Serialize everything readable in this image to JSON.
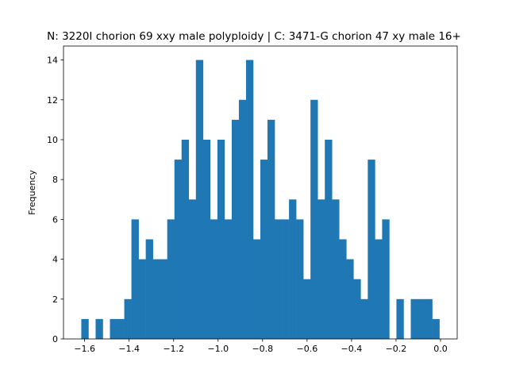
{
  "chart_data": {
    "type": "bar",
    "title": "N: 3220I chorion 69 xxy male polyploidy | C: 3471-G chorion 47 xy male 16+",
    "xlabel": "",
    "ylabel": "Frequency",
    "xlim": [
      -1.695,
      0.075
    ],
    "ylim": [
      0,
      14.7
    ],
    "xticks": [
      -1.6,
      -1.4,
      -1.2,
      -1.0,
      -0.8,
      -0.6,
      -0.4,
      -0.2,
      0.0
    ],
    "xtick_labels": [
      "−1.6",
      "−1.4",
      "−1.2",
      "−1.0",
      "−0.8",
      "−0.6",
      "−0.4",
      "−0.2",
      "0.0"
    ],
    "yticks": [
      0,
      2,
      4,
      6,
      8,
      10,
      12,
      14
    ],
    "ytick_labels": [
      "0",
      "2",
      "4",
      "6",
      "8",
      "10",
      "12",
      "14"
    ],
    "bar_color": "#1f77b4",
    "bin_start": -1.615,
    "bin_width": 0.0322,
    "counts": [
      1,
      0,
      1,
      0,
      1,
      1,
      2,
      6,
      4,
      5,
      4,
      4,
      6,
      9,
      10,
      7,
      14,
      10,
      6,
      10,
      6,
      11,
      12,
      14,
      5,
      9,
      11,
      6,
      6,
      7,
      6,
      3,
      12,
      7,
      10,
      7,
      5,
      4,
      3,
      2,
      9,
      5,
      6,
      0,
      2,
      0,
      2,
      2,
      2,
      1
    ],
    "grid": false,
    "legend": "none"
  }
}
